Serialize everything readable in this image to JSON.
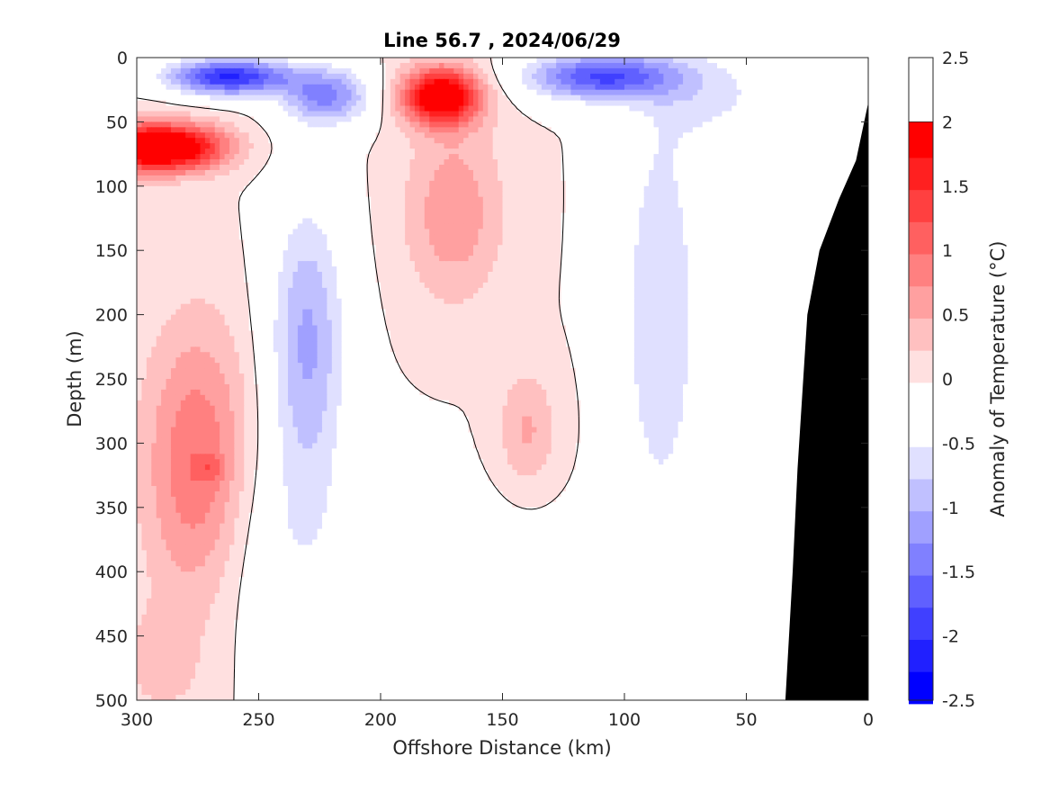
{
  "chart_data": {
    "type": "heatmap",
    "title": "Line 56.7 , 2024/06/29",
    "xlabel": "Offshore Distance (km)",
    "ylabel": "Depth (m)",
    "colorbar_label": "Anomaly of Temperature (°C)",
    "xlim": [
      300,
      0
    ],
    "ylim": [
      0,
      500
    ],
    "x_reversed": true,
    "y_reversed": true,
    "x_ticks": [
      "300",
      "250",
      "200",
      "150",
      "100",
      "50",
      "0"
    ],
    "x_tick_values": [
      300,
      250,
      200,
      150,
      100,
      50,
      0
    ],
    "y_ticks": [
      "0",
      "50",
      "100",
      "150",
      "200",
      "250",
      "300",
      "350",
      "400",
      "450",
      "500"
    ],
    "y_tick_values": [
      0,
      50,
      100,
      150,
      200,
      250,
      300,
      350,
      400,
      450,
      500
    ],
    "colorbar_ticks": [
      "2.5",
      "2",
      "1.5",
      "1",
      "0.5",
      "0",
      "-0.5",
      "-1",
      "-1.5",
      "-2",
      "-2.5"
    ],
    "colorbar_tick_values": [
      2.5,
      2,
      1.5,
      1,
      0.5,
      0,
      -0.5,
      -1,
      -1.5,
      -2,
      -2.5
    ],
    "clim": [
      -2.5,
      2.5
    ],
    "contour_step": 0.25,
    "contour_line_level": 0,
    "colorbar_levels": [
      "#0000ff",
      "#2020ff",
      "#4040ff",
      "#6060ff",
      "#8080ff",
      "#a0a0ff",
      "#c0c0ff",
      "#e0e0ff",
      "#ffffff",
      "#ffffff",
      "#ffe0e0",
      "#ffc0c0",
      "#ffa0a0",
      "#ff8080",
      "#ff6060",
      "#ff4040",
      "#ff2020",
      "#ff0000"
    ],
    "bathymetry_color": "#000000",
    "bathymetry": [
      {
        "x": 34,
        "depth": 500
      },
      {
        "x": 31,
        "depth": 400
      },
      {
        "x": 29,
        "depth": 320
      },
      {
        "x": 25,
        "depth": 200
      },
      {
        "x": 20,
        "depth": 150
      },
      {
        "x": 12,
        "depth": 110
      },
      {
        "x": 5,
        "depth": 80
      },
      {
        "x": 0,
        "depth": 35
      }
    ],
    "anomaly_features": [
      {
        "x": 285,
        "depth": 70,
        "sx": 22,
        "sz": 18,
        "value": 2.3
      },
      {
        "x": 298,
        "depth": 70,
        "sx": 12,
        "sz": 22,
        "value": 0.8
      },
      {
        "x": 275,
        "depth": 320,
        "sx": 22,
        "sz": 110,
        "value": 1.05
      },
      {
        "x": 290,
        "depth": 470,
        "sx": 15,
        "sz": 40,
        "value": 0.4
      },
      {
        "x": 270,
        "depth": 320,
        "sx": 6,
        "sz": 10,
        "value": 0.4
      },
      {
        "x": 262,
        "depth": 15,
        "sx": 25,
        "sz": 14,
        "value": -2.1
      },
      {
        "x": 222,
        "depth": 30,
        "sx": 18,
        "sz": 22,
        "value": -1.3
      },
      {
        "x": 230,
        "depth": 220,
        "sx": 16,
        "sz": 110,
        "value": -1.05
      },
      {
        "x": 240,
        "depth": 380,
        "sx": 35,
        "sz": 90,
        "value": -0.4
      },
      {
        "x": 175,
        "depth": 30,
        "sx": 16,
        "sz": 22,
        "value": 2.3
      },
      {
        "x": 170,
        "depth": 120,
        "sx": 20,
        "sz": 70,
        "value": 0.7
      },
      {
        "x": 140,
        "depth": 290,
        "sx": 12,
        "sz": 45,
        "value": 0.55
      },
      {
        "x": 110,
        "depth": 15,
        "sx": 30,
        "sz": 18,
        "value": -1.8
      },
      {
        "x": 85,
        "depth": 200,
        "sx": 18,
        "sz": 180,
        "value": -0.75
      },
      {
        "x": 160,
        "depth": 450,
        "sx": 45,
        "sz": 90,
        "value": -0.35
      },
      {
        "x": 60,
        "depth": 30,
        "sx": 25,
        "sz": 40,
        "value": -0.5
      }
    ]
  }
}
